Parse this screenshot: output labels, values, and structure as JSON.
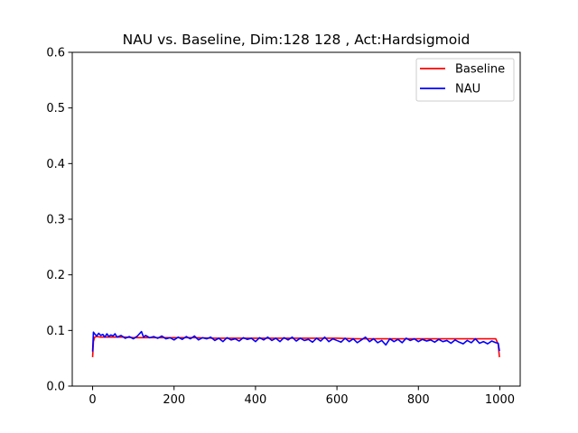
{
  "chart_data": {
    "type": "line",
    "title": "NAU vs. Baseline, Dim:128 128 , Act:Hardsigmoid",
    "xlabel": "",
    "ylabel": "",
    "xlim": [
      -50,
      1050
    ],
    "ylim": [
      0,
      0.6
    ],
    "xticks": [
      0,
      200,
      400,
      600,
      800,
      1000
    ],
    "xtick_labels": [
      "0",
      "200",
      "400",
      "600",
      "800",
      "1000"
    ],
    "yticks": [
      0.0,
      0.1,
      0.2,
      0.3,
      0.4,
      0.5,
      0.6
    ],
    "ytick_labels": [
      "0.0",
      "0.1",
      "0.2",
      "0.3",
      "0.4",
      "0.5",
      "0.6"
    ],
    "grid": false,
    "legend_position": "top-right",
    "series": [
      {
        "name": "Baseline",
        "color": "#ff0000",
        "x": [
          0,
          2,
          5,
          10,
          20,
          40,
          60,
          80,
          100,
          150,
          200,
          250,
          300,
          350,
          400,
          450,
          500,
          550,
          600,
          650,
          700,
          750,
          800,
          850,
          900,
          950,
          990,
          996,
          999
        ],
        "y": [
          0.052,
          0.08,
          0.088,
          0.089,
          0.088,
          0.088,
          0.088,
          0.088,
          0.087,
          0.087,
          0.087,
          0.087,
          0.086,
          0.086,
          0.086,
          0.086,
          0.086,
          0.086,
          0.086,
          0.085,
          0.085,
          0.085,
          0.085,
          0.085,
          0.085,
          0.085,
          0.085,
          0.075,
          0.052
        ]
      },
      {
        "name": "NAU",
        "color": "#0000ff",
        "x": [
          0,
          2,
          5,
          10,
          15,
          20,
          25,
          30,
          35,
          40,
          45,
          50,
          55,
          60,
          70,
          80,
          90,
          100,
          110,
          120,
          125,
          130,
          140,
          150,
          160,
          170,
          180,
          190,
          200,
          210,
          220,
          230,
          240,
          250,
          260,
          270,
          280,
          290,
          300,
          310,
          320,
          330,
          340,
          350,
          360,
          370,
          380,
          390,
          400,
          410,
          420,
          430,
          440,
          450,
          460,
          470,
          480,
          490,
          500,
          510,
          520,
          530,
          540,
          550,
          560,
          570,
          580,
          590,
          600,
          610,
          620,
          630,
          640,
          650,
          660,
          670,
          680,
          690,
          700,
          710,
          720,
          730,
          740,
          750,
          760,
          770,
          780,
          790,
          800,
          810,
          820,
          830,
          840,
          850,
          860,
          870,
          880,
          890,
          900,
          910,
          920,
          930,
          940,
          950,
          960,
          970,
          980,
          990,
          996,
          999
        ],
        "y": [
          0.062,
          0.097,
          0.094,
          0.09,
          0.095,
          0.091,
          0.093,
          0.088,
          0.094,
          0.089,
          0.092,
          0.09,
          0.094,
          0.088,
          0.091,
          0.086,
          0.089,
          0.085,
          0.09,
          0.098,
          0.088,
          0.091,
          0.087,
          0.089,
          0.086,
          0.09,
          0.085,
          0.087,
          0.083,
          0.088,
          0.084,
          0.089,
          0.085,
          0.09,
          0.083,
          0.087,
          0.085,
          0.088,
          0.082,
          0.086,
          0.08,
          0.087,
          0.083,
          0.085,
          0.081,
          0.087,
          0.084,
          0.086,
          0.08,
          0.087,
          0.083,
          0.088,
          0.082,
          0.086,
          0.08,
          0.087,
          0.083,
          0.088,
          0.081,
          0.086,
          0.082,
          0.084,
          0.079,
          0.086,
          0.081,
          0.088,
          0.08,
          0.085,
          0.082,
          0.079,
          0.086,
          0.08,
          0.085,
          0.078,
          0.083,
          0.088,
          0.08,
          0.085,
          0.078,
          0.082,
          0.074,
          0.085,
          0.08,
          0.084,
          0.078,
          0.086,
          0.082,
          0.085,
          0.08,
          0.084,
          0.081,
          0.083,
          0.079,
          0.084,
          0.08,
          0.082,
          0.077,
          0.083,
          0.079,
          0.076,
          0.082,
          0.078,
          0.085,
          0.077,
          0.08,
          0.076,
          0.081,
          0.078,
          0.077,
          0.063
        ]
      }
    ]
  }
}
